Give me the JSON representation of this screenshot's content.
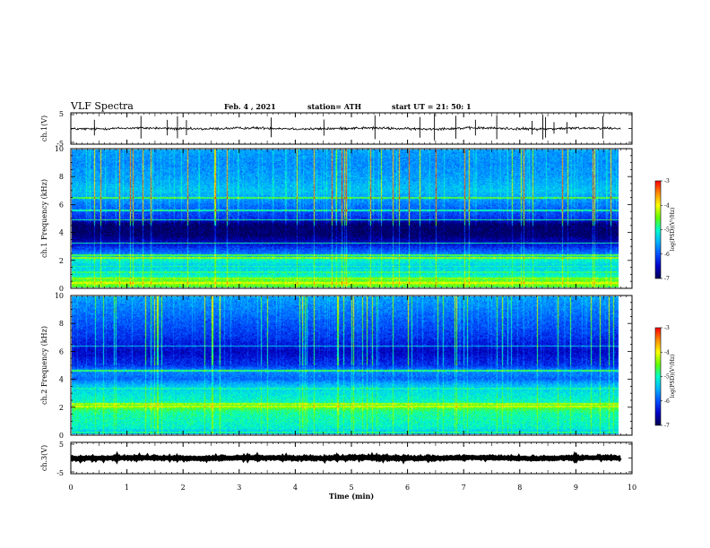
{
  "header": {
    "title": "VLF Spectra",
    "date": "Feb. 4  , 2021",
    "station": "station= ATH",
    "start": "start  UT  =   21: 50: 1"
  },
  "colors": {
    "background": "#ffffff",
    "frame": "#000000",
    "colormap": [
      "#000050",
      "#0000c8",
      "#0050ff",
      "#00b4ff",
      "#00ffc8",
      "#64ff00",
      "#ffff00",
      "#ff8c00",
      "#ff0000"
    ]
  },
  "chart_data": [
    {
      "type": "line",
      "panel": "ch1-waveform",
      "ylabel": "ch.1(V)",
      "xlim": [
        0,
        10
      ],
      "ylim": [
        -5,
        5
      ],
      "yticks": [
        "5",
        "-5"
      ],
      "x_end_min": 9.8,
      "baseline_v": 0.0,
      "noise_amp_v": 0.6,
      "spike_times_min": [
        0.42,
        1.25,
        1.72,
        1.9,
        2.06,
        3.57,
        4.51,
        5.42,
        6.22,
        6.48,
        6.86,
        7.21,
        7.59,
        8.22,
        8.41,
        8.46,
        8.61,
        8.84,
        9.48
      ]
    },
    {
      "type": "heatmap",
      "panel": "ch1-spectrogram",
      "ylabel": "ch.1  Frequency (kHz)",
      "xlim": [
        0,
        10
      ],
      "ylim": [
        0,
        10
      ],
      "yticks": [
        "0",
        "2",
        "4",
        "6",
        "8",
        "10"
      ],
      "x_end_min": 9.8,
      "colorbar": {
        "label": "log(PSD)(V²/Hz)",
        "range": [
          -7,
          -3
        ],
        "ticks": [
          "-3",
          "-4",
          "-5",
          "-6",
          "-7"
        ]
      },
      "profile_khz": [
        [
          0,
          -4.7
        ],
        [
          0.3,
          -4.3
        ],
        [
          0.6,
          -4.8
        ],
        [
          1.0,
          -5.2
        ],
        [
          1.6,
          -5.3
        ],
        [
          2.0,
          -5.0
        ],
        [
          2.3,
          -5.7
        ],
        [
          2.8,
          -6.1
        ],
        [
          3.3,
          -6.6
        ],
        [
          3.8,
          -6.9
        ],
        [
          4.6,
          -6.9
        ],
        [
          5.0,
          -6.2
        ],
        [
          6.0,
          -5.8
        ],
        [
          7.0,
          -5.4
        ],
        [
          8.0,
          -5.6
        ],
        [
          9.0,
          -5.7
        ],
        [
          10.0,
          -5.6
        ]
      ],
      "lines_khz": [
        [
          0.3,
          -4.1
        ],
        [
          0.6,
          -4.4
        ],
        [
          1.1,
          -4.8
        ],
        [
          1.5,
          -4.9
        ],
        [
          2.15,
          -4.4
        ],
        [
          2.3,
          -4.7
        ],
        [
          3.2,
          -5.0
        ],
        [
          4.9,
          -4.9
        ],
        [
          5.6,
          -5.0
        ],
        [
          6.5,
          -4.7
        ]
      ]
    },
    {
      "type": "heatmap",
      "panel": "ch2-spectrogram",
      "ylabel": "ch.2  Frequency (kHz)",
      "xlim": [
        0,
        10
      ],
      "ylim": [
        0,
        10
      ],
      "yticks": [
        "0",
        "2",
        "4",
        "6",
        "8",
        "10"
      ],
      "x_end_min": 9.8,
      "colorbar": {
        "label": "log(PSD)(V²/Hz)",
        "range": [
          -7,
          -3
        ],
        "ticks": [
          "-3",
          "-4",
          "-5",
          "-6",
          "-7"
        ]
      },
      "profile_khz": [
        [
          0,
          -5.6
        ],
        [
          0.4,
          -5.1
        ],
        [
          1.0,
          -5.0
        ],
        [
          1.6,
          -4.9
        ],
        [
          2.0,
          -4.5
        ],
        [
          2.3,
          -5.0
        ],
        [
          3.0,
          -5.2
        ],
        [
          3.5,
          -5.4
        ],
        [
          4.0,
          -5.9
        ],
        [
          4.6,
          -5.7
        ],
        [
          5.0,
          -6.2
        ],
        [
          6.0,
          -6.5
        ],
        [
          7.0,
          -6.2
        ],
        [
          8.0,
          -6.0
        ],
        [
          9.0,
          -5.8
        ],
        [
          10.0,
          -5.6
        ]
      ],
      "lines_khz": [
        [
          0.1,
          -4.9
        ],
        [
          2.0,
          -4.2
        ],
        [
          2.2,
          -4.3
        ],
        [
          3.3,
          -5.0
        ],
        [
          4.6,
          -4.8
        ],
        [
          6.4,
          -5.4
        ]
      ]
    },
    {
      "type": "line",
      "panel": "ch3-waveform",
      "ylabel": "ch.3(V)",
      "xlim": [
        0,
        10
      ],
      "ylim": [
        -5,
        5
      ],
      "yticks": [
        "5",
        "-5"
      ],
      "x_end_min": 9.8,
      "baseline_v": 0.0,
      "noise_amp_v": 0.4
    }
  ],
  "xaxis": {
    "label": "Time  (min)",
    "ticks": [
      "0",
      "1",
      "2",
      "3",
      "4",
      "5",
      "6",
      "7",
      "8",
      "9",
      "10"
    ]
  }
}
